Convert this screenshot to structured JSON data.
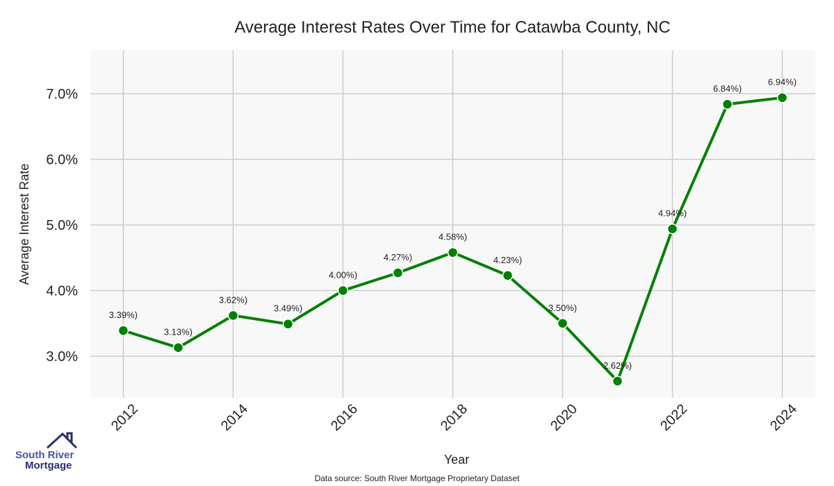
{
  "chart_data": {
    "type": "line",
    "title": "Average Interest Rates Over Time for Catawba County, NC",
    "xlabel": "Year",
    "ylabel": "Average Interest Rate",
    "x": [
      2012,
      2013,
      2014,
      2015,
      2016,
      2017,
      2018,
      2019,
      2020,
      2021,
      2022,
      2023,
      2024
    ],
    "series": [
      {
        "name": "Average Interest Rate",
        "values": [
          3.39,
          3.13,
          3.62,
          3.49,
          4.0,
          4.27,
          4.58,
          4.23,
          3.5,
          2.62,
          4.94,
          6.84,
          6.94
        ],
        "color": "#008000"
      }
    ],
    "data_labels": [
      "3.39%)",
      "3.13%)",
      "3.62%)",
      "3.49%)",
      "4.00%)",
      "4.27%)",
      "4.58%)",
      "4.23%)",
      "3.50%)",
      "2.62%)",
      "4.94%)",
      "6.84%)",
      "6.94%)"
    ],
    "xticks": [
      "2012",
      "2014",
      "2016",
      "2018",
      "2020",
      "2022",
      "2024"
    ],
    "yticks": [
      {
        "v": 3,
        "label": "3.0%"
      },
      {
        "v": 4,
        "label": "4.0%"
      },
      {
        "v": 5,
        "label": "5.0%"
      },
      {
        "v": 6,
        "label": "6.0%"
      },
      {
        "v": 7,
        "label": "7.0%"
      }
    ],
    "ylim": [
      2.365,
      7.667
    ],
    "xlim": [
      2011.4,
      2024.6
    ],
    "grid": true,
    "source": "Data source: South River Mortgage Proprietary Dataset"
  },
  "logo": {
    "line1": "South River",
    "line2": "Mortgage"
  }
}
